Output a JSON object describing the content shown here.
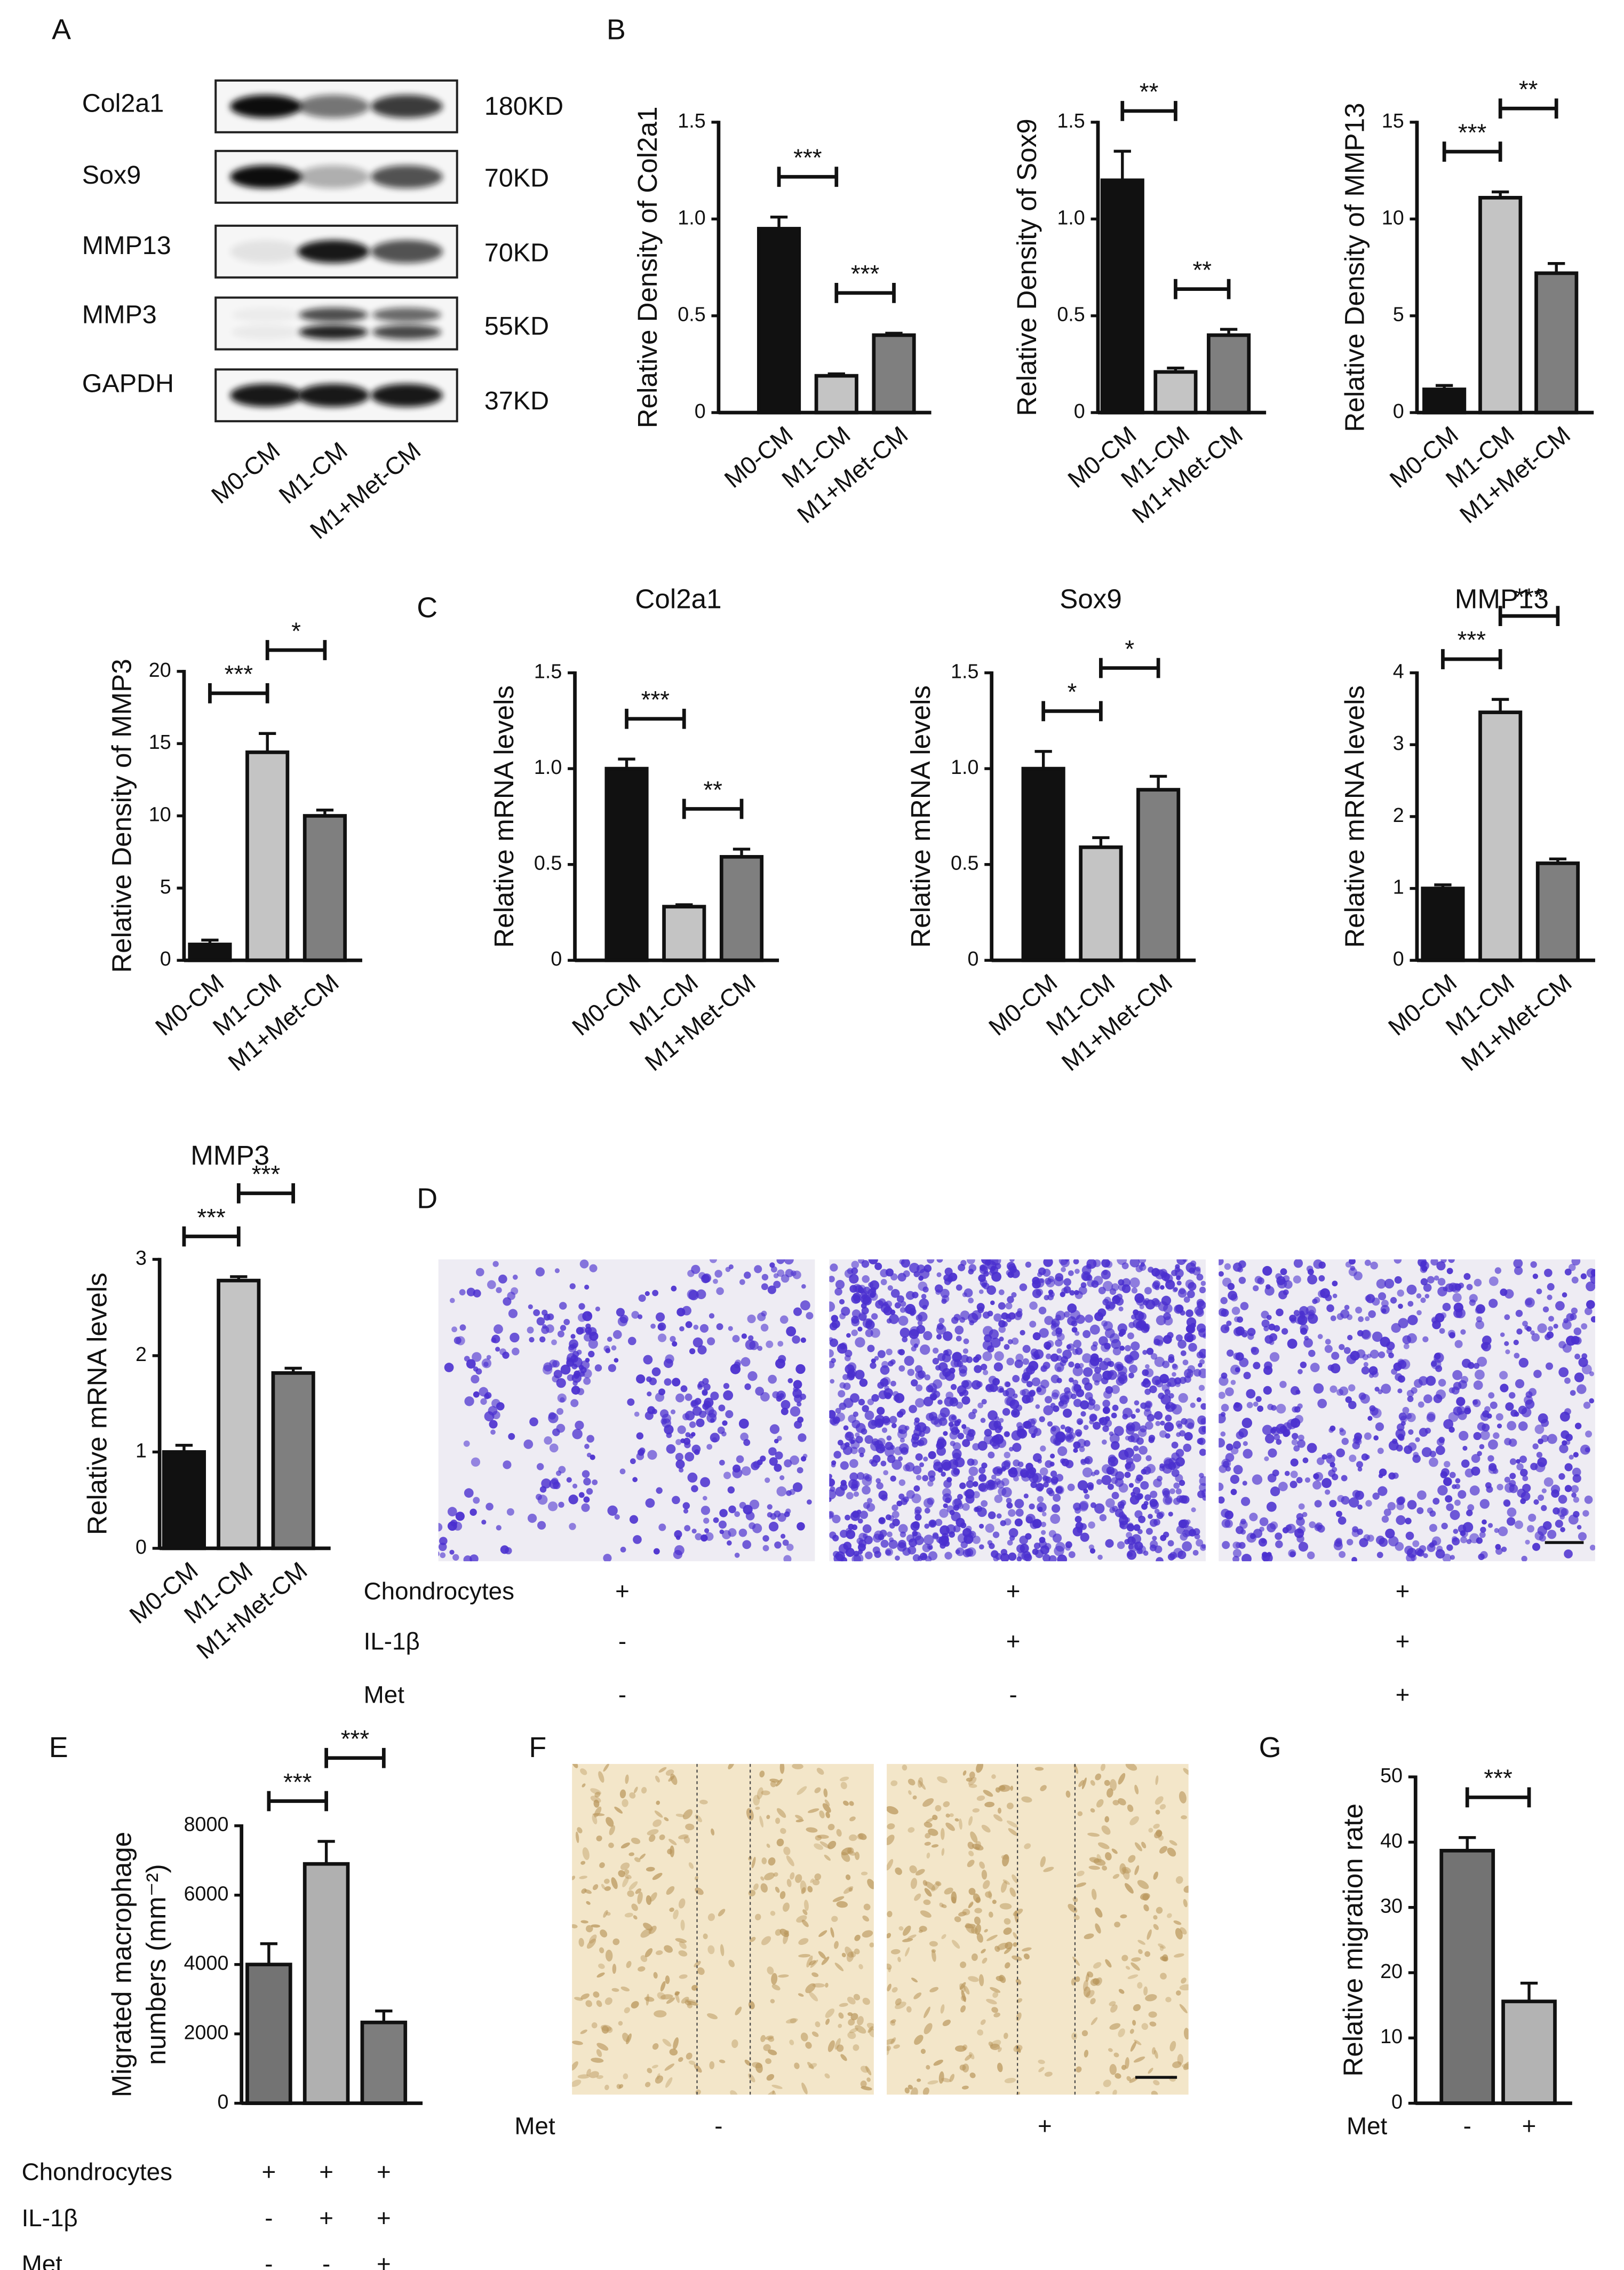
{
  "panel_labels": [
    "A",
    "B",
    "C",
    "D",
    "E",
    "F",
    "G"
  ],
  "blot": {
    "proteins": [
      "Col2a1",
      "Sox9",
      "MMP13",
      "MMP3",
      "GAPDH"
    ],
    "sizes": [
      "180KD",
      "70KD",
      "70KD",
      "55KD",
      "37KD"
    ],
    "lanes": [
      "M0-CM",
      "M1-CM",
      "M1+Met-CM"
    ]
  },
  "transwell": {
    "rows": [
      {
        "name": "Chondrocytes",
        "marks": [
          "+",
          "+",
          "+"
        ]
      },
      {
        "name": "IL-1β",
        "marks": [
          "-",
          "+",
          "+"
        ]
      },
      {
        "name": "Met",
        "marks": [
          "-",
          "-",
          "+"
        ]
      }
    ]
  },
  "wound_healing": {
    "name": "Met",
    "marks": [
      "-",
      "+"
    ]
  },
  "chart_data": [
    {
      "type": "bar",
      "ylabel": "Relative Density of Col2a1",
      "categories": [
        "M0-CM",
        "M1-CM",
        "M1+Met-CM"
      ],
      "values": [
        0.95,
        0.19,
        0.4
      ],
      "errors": [
        0.06,
        0.01,
        0.01
      ],
      "colors": [
        "#111111",
        "#c4c4c4",
        "#7f7f7f"
      ],
      "ylim": [
        0,
        1.5
      ],
      "yticks": [
        0,
        0.5,
        {
          "value": 1,
          "label": "1.0"
        },
        1.5
      ],
      "significance": [
        {
          "from": 0,
          "to": 1,
          "label": "***"
        },
        {
          "from": 1,
          "to": 2,
          "label": "***"
        }
      ]
    },
    {
      "type": "bar",
      "ylabel": "Relative Density of Sox9",
      "categories": [
        "M0-CM",
        "M1-CM",
        "M1+Met-CM"
      ],
      "values": [
        1.2,
        0.21,
        0.4
      ],
      "errors": [
        0.15,
        0.02,
        0.03
      ],
      "colors": [
        "#111111",
        "#c4c4c4",
        "#7f7f7f"
      ],
      "ylim": [
        0,
        1.5
      ],
      "yticks": [
        0,
        0.5,
        {
          "value": 1,
          "label": "1.0"
        },
        1.5
      ],
      "significance": [
        {
          "from": 0,
          "to": 1,
          "label": "**"
        },
        {
          "from": 1,
          "to": 2,
          "label": "**"
        }
      ]
    },
    {
      "type": "bar",
      "ylabel": "Relative Density of MMP13",
      "categories": [
        "M0-CM",
        "M1-CM",
        "M1+Met-CM"
      ],
      "values": [
        1.2,
        11.1,
        7.2
      ],
      "errors": [
        0.2,
        0.3,
        0.5
      ],
      "colors": [
        "#111111",
        "#c4c4c4",
        "#7f7f7f"
      ],
      "ylim": [
        0,
        15
      ],
      "yticks": [
        0,
        5,
        10,
        15
      ],
      "significance": [
        {
          "from": 0,
          "to": 1,
          "label": "***"
        },
        {
          "from": 1,
          "to": 2,
          "label": "**"
        }
      ]
    },
    {
      "type": "bar",
      "ylabel": "Relative Density of MMP3",
      "categories": [
        "M0-CM",
        "M1-CM",
        "M1+Met-CM"
      ],
      "values": [
        1.1,
        14.4,
        10.0
      ],
      "errors": [
        0.3,
        1.3,
        0.4
      ],
      "colors": [
        "#111111",
        "#c4c4c4",
        "#7f7f7f"
      ],
      "ylim": [
        0,
        20
      ],
      "yticks": [
        0,
        5,
        10,
        15,
        20
      ],
      "significance": [
        {
          "from": 0,
          "to": 1,
          "label": "***"
        },
        {
          "from": 1,
          "to": 2,
          "label": "*"
        }
      ]
    },
    {
      "type": "bar",
      "title": "Col2a1",
      "ylabel": "Relative mRNA levels",
      "categories": [
        "M0-CM",
        "M1-CM",
        "M1+Met-CM"
      ],
      "values": [
        1.0,
        0.28,
        0.54
      ],
      "errors": [
        0.05,
        0.01,
        0.04
      ],
      "colors": [
        "#111111",
        "#c4c4c4",
        "#7f7f7f"
      ],
      "ylim": [
        0,
        1.5
      ],
      "yticks": [
        0,
        0.5,
        {
          "value": 1,
          "label": "1.0"
        },
        1.5
      ],
      "significance": [
        {
          "from": 0,
          "to": 1,
          "label": "***"
        },
        {
          "from": 1,
          "to": 2,
          "label": "**"
        }
      ]
    },
    {
      "type": "bar",
      "title": "Sox9",
      "ylabel": "Relative mRNA levels",
      "categories": [
        "M0-CM",
        "M1-CM",
        "M1+Met-CM"
      ],
      "values": [
        1.0,
        0.59,
        0.89
      ],
      "errors": [
        0.09,
        0.05,
        0.07
      ],
      "colors": [
        "#111111",
        "#c4c4c4",
        "#7f7f7f"
      ],
      "ylim": [
        0,
        1.5
      ],
      "yticks": [
        0,
        0.5,
        {
          "value": 1,
          "label": "1.0"
        },
        1.5
      ],
      "significance": [
        {
          "from": 0,
          "to": 1,
          "label": "*"
        },
        {
          "from": 1,
          "to": 2,
          "label": "*"
        }
      ]
    },
    {
      "type": "bar",
      "title": "MMP13",
      "ylabel": "Relative mRNA levels",
      "categories": [
        "M0-CM",
        "M1-CM",
        "M1+Met-CM"
      ],
      "values": [
        1.0,
        3.45,
        1.35
      ],
      "errors": [
        0.05,
        0.18,
        0.06
      ],
      "colors": [
        "#111111",
        "#c4c4c4",
        "#7f7f7f"
      ],
      "ylim": [
        0,
        4
      ],
      "yticks": [
        0,
        1,
        2,
        3,
        4
      ],
      "significance": [
        {
          "from": 0,
          "to": 1,
          "label": "***"
        },
        {
          "from": 1,
          "to": 2,
          "label": "***"
        }
      ]
    },
    {
      "type": "bar",
      "title": "MMP3",
      "ylabel": "Relative mRNA levels",
      "categories": [
        "M0-CM",
        "M1-CM",
        "M1+Met-CM"
      ],
      "values": [
        1.0,
        2.78,
        1.82
      ],
      "errors": [
        0.07,
        0.04,
        0.05
      ],
      "colors": [
        "#111111",
        "#c4c4c4",
        "#7f7f7f"
      ],
      "ylim": [
        0,
        3
      ],
      "yticks": [
        0,
        1,
        2,
        3
      ],
      "significance": [
        {
          "from": 0,
          "to": 1,
          "label": "***"
        },
        {
          "from": 1,
          "to": 2,
          "label": "***"
        }
      ]
    },
    {
      "type": "bar",
      "ylabel": [
        "Migrated macrophage",
        "numbers (mm⁻²)"
      ],
      "categories": [
        null,
        null,
        null
      ],
      "values": [
        4000,
        6900,
        2330
      ],
      "errors": [
        600,
        650,
        330
      ],
      "colors": [
        "#737373",
        "#b0b0b0",
        "#7d7d7d"
      ],
      "ylim": [
        0,
        8000
      ],
      "yticks": [
        0,
        2000,
        4000,
        6000,
        8000
      ],
      "conditions": [
        {
          "name": "Chondrocytes",
          "marks": [
            "+",
            "+",
            "+"
          ]
        },
        {
          "name": "IL-1β",
          "marks": [
            "-",
            "+",
            "+"
          ]
        },
        {
          "name": "Met",
          "marks": [
            "-",
            "-",
            "+"
          ]
        }
      ],
      "significance": [
        {
          "from": 0,
          "to": 1,
          "label": "***"
        },
        {
          "from": 1,
          "to": 2,
          "label": "***"
        }
      ]
    },
    {
      "type": "bar",
      "ylabel": "Relative migration rate",
      "categories": [
        null,
        null
      ],
      "values": [
        38.7,
        15.6
      ],
      "errors": [
        2.0,
        2.8
      ],
      "colors": [
        "#737373",
        "#b3b3b3"
      ],
      "ylim": [
        0,
        50
      ],
      "yticks": [
        0,
        10,
        20,
        30,
        40,
        50
      ],
      "conditions": [
        {
          "name": "Met",
          "marks": [
            "-",
            "+"
          ]
        }
      ],
      "significance": [
        {
          "from": 0,
          "to": 1,
          "label": "***"
        }
      ]
    }
  ]
}
